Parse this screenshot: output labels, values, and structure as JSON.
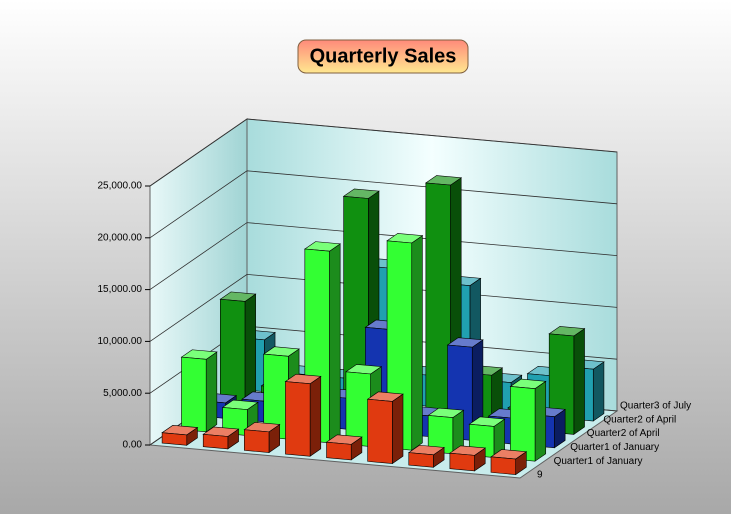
{
  "chart_data": {
    "type": "bar3d",
    "title": "Quarterly Sales",
    "categories": [
      null,
      null,
      null,
      null,
      null,
      null,
      null,
      null,
      null
    ],
    "depth_labels": [
      "Quarter3 of July",
      "Quarter2 of April",
      "Quarter2 of April",
      "Quarter1 of January",
      "Quarter1 of January",
      "9"
    ],
    "series": [
      {
        "color": "#e03a10",
        "values": [
          1000,
          1200,
          2000,
          7000,
          1500,
          6000,
          1200,
          1500,
          1500
        ]
      },
      {
        "color": "#33ff33",
        "values": [
          7000,
          2500,
          8000,
          18500,
          7000,
          20000,
          3500,
          3000,
          7000
        ]
      },
      {
        "color": "#1434b0",
        "values": [
          1500,
          2000,
          1000,
          3000,
          10000,
          2000,
          9000,
          2500,
          3000
        ]
      },
      {
        "color": "#109010",
        "values": [
          10000,
          2000,
          3000,
          21000,
          3000,
          23000,
          5000,
          2000,
          9500
        ]
      },
      {
        "color": "#20a0b0",
        "values": [
          5000,
          2000,
          2000,
          13000,
          3000,
          12000,
          3000,
          4000,
          5000
        ]
      }
    ],
    "ylim": [
      0,
      25000
    ],
    "yticks": [
      {
        "value": 0,
        "label": "0.00"
      },
      {
        "value": 5000,
        "label": "5,000.00"
      },
      {
        "value": 10000,
        "label": "10,000.00"
      },
      {
        "value": 15000,
        "label": "15,000.00"
      },
      {
        "value": 20000,
        "label": "20,000.00"
      },
      {
        "value": 25000,
        "label": "25,000.00"
      }
    ],
    "grid": true
  }
}
